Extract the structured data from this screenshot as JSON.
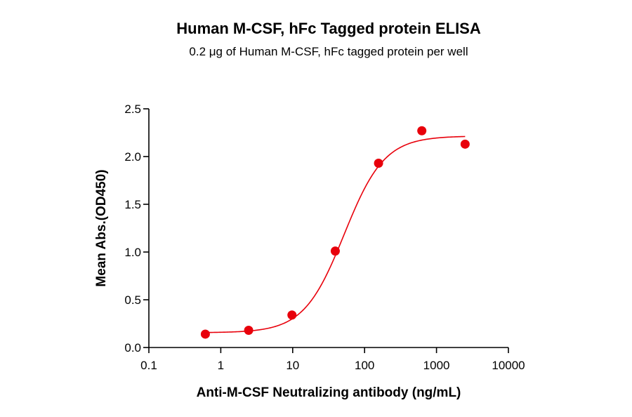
{
  "chart_data": {
    "type": "scatter",
    "title": "Human M-CSF, hFc Tagged protein ELISA",
    "subtitle": "0.2 μg of Human M-CSF, hFc tagged protein per well",
    "xlabel": "Anti-M-CSF Neutralizing antibody (ng/mL)",
    "ylabel": "Mean Abs.(OD450)",
    "x_scale": "log",
    "xlim": [
      0.1,
      10000
    ],
    "ylim": [
      0,
      2.5
    ],
    "x_ticks": [
      "0.1",
      "1",
      "10",
      "100",
      "1000",
      "10000"
    ],
    "y_ticks": [
      "0.0",
      "0.5",
      "1.0",
      "1.5",
      "2.0",
      "2.5"
    ],
    "series": [
      {
        "color": "#e8000b",
        "x": [
          0.61,
          2.44,
          9.77,
          39.1,
          156.3,
          625,
          2500
        ],
        "y": [
          0.14,
          0.18,
          0.34,
          1.01,
          1.93,
          2.27,
          2.13
        ]
      }
    ],
    "fit_curve": {
      "model": "4PL",
      "color": "#e8000b"
    },
    "grid": false,
    "legend": "none"
  }
}
